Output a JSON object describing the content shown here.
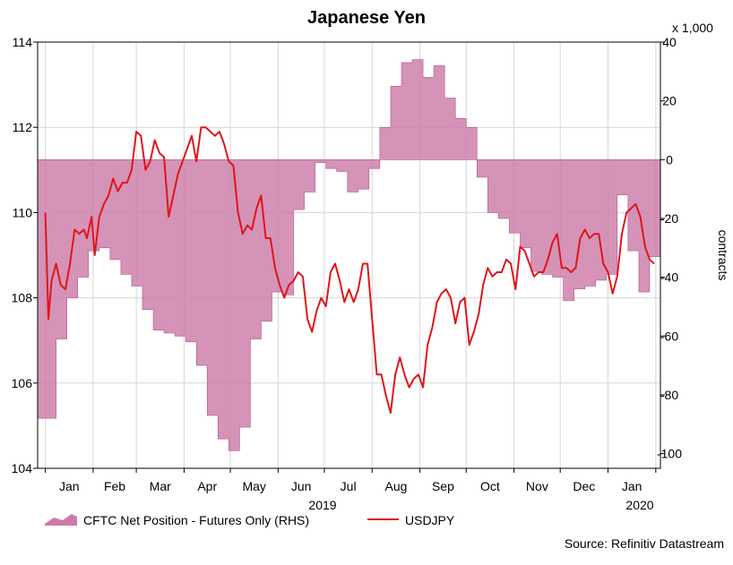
{
  "chart_data": {
    "type": "line",
    "title": "Japanese Yen",
    "source": "Source: Refinitiv Datastream",
    "x_unit_note": "x 1,000",
    "ylabel_right": "contracts",
    "x_tick_labels": [
      "Jan",
      "Feb",
      "Mar",
      "Apr",
      "May",
      "Jun",
      "Jul",
      "Aug",
      "Sep",
      "Oct",
      "Nov",
      "Dec",
      "Jan"
    ],
    "year_labels": [
      "2019",
      "2020"
    ],
    "left_axis": {
      "ylim": [
        104,
        114
      ],
      "ticks": [
        104,
        106,
        108,
        110,
        112,
        114
      ]
    },
    "right_axis": {
      "ylim": [
        -105,
        40
      ],
      "ticks": [
        -100,
        -80,
        -60,
        -40,
        -20,
        0,
        20,
        40
      ]
    },
    "legend": {
      "position": "bottom-left"
    },
    "grid": true,
    "series": [
      {
        "name": "CFTC Net Position - Futures Only (RHS)",
        "type": "area",
        "axis": "right",
        "color": "#CC7BA8",
        "step": true,
        "points": [
          [
            "2019-01-01",
            -88
          ],
          [
            "2019-01-08",
            -61
          ],
          [
            "2019-01-15",
            -47
          ],
          [
            "2019-01-22",
            -40
          ],
          [
            "2019-01-29",
            -31
          ],
          [
            "2019-02-05",
            -30
          ],
          [
            "2019-02-12",
            -34
          ],
          [
            "2019-02-19",
            -39
          ],
          [
            "2019-02-26",
            -43
          ],
          [
            "2019-03-05",
            -51
          ],
          [
            "2019-03-12",
            -58
          ],
          [
            "2019-03-19",
            -59
          ],
          [
            "2019-03-26",
            -60
          ],
          [
            "2019-04-02",
            -62
          ],
          [
            "2019-04-09",
            -70
          ],
          [
            "2019-04-16",
            -87
          ],
          [
            "2019-04-23",
            -95
          ],
          [
            "2019-04-30",
            -99
          ],
          [
            "2019-05-07",
            -91
          ],
          [
            "2019-05-14",
            -61
          ],
          [
            "2019-05-21",
            -55
          ],
          [
            "2019-05-28",
            -45
          ],
          [
            "2019-06-04",
            -46
          ],
          [
            "2019-06-11",
            -17
          ],
          [
            "2019-06-18",
            -11
          ],
          [
            "2019-06-25",
            -1
          ],
          [
            "2019-07-02",
            -3
          ],
          [
            "2019-07-09",
            -4
          ],
          [
            "2019-07-16",
            -11
          ],
          [
            "2019-07-23",
            -10
          ],
          [
            "2019-07-30",
            -3
          ],
          [
            "2019-08-06",
            11
          ],
          [
            "2019-08-13",
            25
          ],
          [
            "2019-08-20",
            33
          ],
          [
            "2019-08-27",
            34
          ],
          [
            "2019-09-03",
            28
          ],
          [
            "2019-09-10",
            32
          ],
          [
            "2019-09-17",
            21
          ],
          [
            "2019-09-24",
            14
          ],
          [
            "2019-10-01",
            11
          ],
          [
            "2019-10-08",
            -6
          ],
          [
            "2019-10-15",
            -18
          ],
          [
            "2019-10-22",
            -20
          ],
          [
            "2019-10-29",
            -25
          ],
          [
            "2019-11-05",
            -30
          ],
          [
            "2019-11-12",
            -38
          ],
          [
            "2019-11-19",
            -39
          ],
          [
            "2019-11-26",
            -40
          ],
          [
            "2019-12-03",
            -48
          ],
          [
            "2019-12-10",
            -44
          ],
          [
            "2019-12-17",
            -43
          ],
          [
            "2019-12-24",
            -41
          ],
          [
            "2019-12-31",
            -39
          ],
          [
            "2020-01-07",
            -12
          ],
          [
            "2020-01-14",
            -31
          ],
          [
            "2020-01-21",
            -45
          ],
          [
            "2020-01-28",
            -33
          ]
        ]
      },
      {
        "name": "USDJPY",
        "type": "line",
        "axis": "left",
        "color": "#E0151B",
        "points": [
          [
            "2019-01-01",
            110.0
          ],
          [
            "2019-01-03",
            107.5
          ],
          [
            "2019-01-05",
            108.4
          ],
          [
            "2019-01-08",
            108.8
          ],
          [
            "2019-01-11",
            108.3
          ],
          [
            "2019-01-14",
            108.2
          ],
          [
            "2019-01-17",
            108.8
          ],
          [
            "2019-01-20",
            109.6
          ],
          [
            "2019-01-23",
            109.5
          ],
          [
            "2019-01-26",
            109.6
          ],
          [
            "2019-01-28",
            109.4
          ],
          [
            "2019-01-31",
            109.9
          ],
          [
            "2019-02-02",
            109.0
          ],
          [
            "2019-02-05",
            109.9
          ],
          [
            "2019-02-08",
            110.2
          ],
          [
            "2019-02-11",
            110.4
          ],
          [
            "2019-02-14",
            110.8
          ],
          [
            "2019-02-17",
            110.5
          ],
          [
            "2019-02-20",
            110.7
          ],
          [
            "2019-02-23",
            110.7
          ],
          [
            "2019-02-26",
            111.0
          ],
          [
            "2019-03-01",
            111.9
          ],
          [
            "2019-03-04",
            111.8
          ],
          [
            "2019-03-07",
            111.0
          ],
          [
            "2019-03-10",
            111.2
          ],
          [
            "2019-03-13",
            111.7
          ],
          [
            "2019-03-16",
            111.4
          ],
          [
            "2019-03-19",
            111.3
          ],
          [
            "2019-03-22",
            109.9
          ],
          [
            "2019-03-25",
            110.4
          ],
          [
            "2019-03-28",
            110.9
          ],
          [
            "2019-03-31",
            111.2
          ],
          [
            "2019-04-03",
            111.5
          ],
          [
            "2019-04-06",
            111.8
          ],
          [
            "2019-04-09",
            111.2
          ],
          [
            "2019-04-12",
            112.0
          ],
          [
            "2019-04-15",
            112.0
          ],
          [
            "2019-04-18",
            111.9
          ],
          [
            "2019-04-21",
            111.8
          ],
          [
            "2019-04-24",
            111.9
          ],
          [
            "2019-04-27",
            111.6
          ],
          [
            "2019-04-30",
            111.2
          ],
          [
            "2019-05-03",
            111.1
          ],
          [
            "2019-05-06",
            110.0
          ],
          [
            "2019-05-09",
            109.5
          ],
          [
            "2019-05-12",
            109.7
          ],
          [
            "2019-05-15",
            109.6
          ],
          [
            "2019-05-18",
            110.1
          ],
          [
            "2019-05-21",
            110.4
          ],
          [
            "2019-05-24",
            109.4
          ],
          [
            "2019-05-27",
            109.4
          ],
          [
            "2019-05-30",
            108.7
          ],
          [
            "2019-06-02",
            108.3
          ],
          [
            "2019-06-05",
            108.0
          ],
          [
            "2019-06-08",
            108.3
          ],
          [
            "2019-06-11",
            108.4
          ],
          [
            "2019-06-14",
            108.6
          ],
          [
            "2019-06-17",
            108.5
          ],
          [
            "2019-06-20",
            107.5
          ],
          [
            "2019-06-23",
            107.2
          ],
          [
            "2019-06-26",
            107.7
          ],
          [
            "2019-06-29",
            108.0
          ],
          [
            "2019-07-02",
            107.8
          ],
          [
            "2019-07-05",
            108.6
          ],
          [
            "2019-07-08",
            108.8
          ],
          [
            "2019-07-11",
            108.4
          ],
          [
            "2019-07-14",
            107.9
          ],
          [
            "2019-07-17",
            108.2
          ],
          [
            "2019-07-20",
            107.9
          ],
          [
            "2019-07-23",
            108.2
          ],
          [
            "2019-07-26",
            108.8
          ],
          [
            "2019-07-29",
            108.8
          ],
          [
            "2019-08-01",
            107.5
          ],
          [
            "2019-08-04",
            106.2
          ],
          [
            "2019-08-07",
            106.2
          ],
          [
            "2019-08-10",
            105.7
          ],
          [
            "2019-08-13",
            105.3
          ],
          [
            "2019-08-16",
            106.2
          ],
          [
            "2019-08-19",
            106.6
          ],
          [
            "2019-08-22",
            106.2
          ],
          [
            "2019-08-25",
            105.9
          ],
          [
            "2019-08-28",
            106.1
          ],
          [
            "2019-08-31",
            106.2
          ],
          [
            "2019-09-03",
            105.9
          ],
          [
            "2019-09-06",
            106.9
          ],
          [
            "2019-09-09",
            107.3
          ],
          [
            "2019-09-12",
            107.9
          ],
          [
            "2019-09-15",
            108.1
          ],
          [
            "2019-09-18",
            108.2
          ],
          [
            "2019-09-21",
            108.0
          ],
          [
            "2019-09-24",
            107.4
          ],
          [
            "2019-09-27",
            107.9
          ],
          [
            "2019-09-30",
            108.0
          ],
          [
            "2019-10-03",
            106.9
          ],
          [
            "2019-10-06",
            107.2
          ],
          [
            "2019-10-09",
            107.6
          ],
          [
            "2019-10-12",
            108.3
          ],
          [
            "2019-10-15",
            108.7
          ],
          [
            "2019-10-18",
            108.5
          ],
          [
            "2019-10-21",
            108.6
          ],
          [
            "2019-10-24",
            108.6
          ],
          [
            "2019-10-27",
            108.9
          ],
          [
            "2019-10-30",
            108.8
          ],
          [
            "2019-11-02",
            108.2
          ],
          [
            "2019-11-05",
            109.2
          ],
          [
            "2019-11-08",
            109.1
          ],
          [
            "2019-11-11",
            108.8
          ],
          [
            "2019-11-14",
            108.5
          ],
          [
            "2019-11-17",
            108.6
          ],
          [
            "2019-11-20",
            108.6
          ],
          [
            "2019-11-23",
            108.9
          ],
          [
            "2019-11-26",
            109.3
          ],
          [
            "2019-11-29",
            109.5
          ],
          [
            "2019-12-02",
            108.7
          ],
          [
            "2019-12-05",
            108.7
          ],
          [
            "2019-12-08",
            108.6
          ],
          [
            "2019-12-11",
            108.7
          ],
          [
            "2019-12-14",
            109.4
          ],
          [
            "2019-12-17",
            109.6
          ],
          [
            "2019-12-20",
            109.4
          ],
          [
            "2019-12-23",
            109.5
          ],
          [
            "2019-12-26",
            109.5
          ],
          [
            "2019-12-29",
            108.8
          ],
          [
            "2020-01-01",
            108.6
          ],
          [
            "2020-01-04",
            108.1
          ],
          [
            "2020-01-07",
            108.5
          ],
          [
            "2020-01-10",
            109.5
          ],
          [
            "2020-01-13",
            110.0
          ],
          [
            "2020-01-16",
            110.1
          ],
          [
            "2020-01-19",
            110.2
          ],
          [
            "2020-01-22",
            109.9
          ],
          [
            "2020-01-25",
            109.2
          ],
          [
            "2020-01-28",
            108.9
          ],
          [
            "2020-01-31",
            108.8
          ]
        ]
      }
    ]
  }
}
